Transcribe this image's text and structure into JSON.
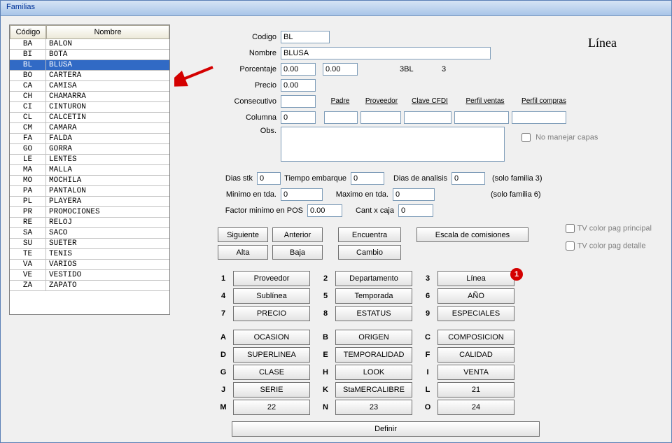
{
  "window": {
    "title": "Familias"
  },
  "table": {
    "headers": {
      "codigo": "Código",
      "nombre": "Nombre"
    },
    "rows": [
      {
        "codigo": "BA",
        "nombre": "BALON",
        "selected": false
      },
      {
        "codigo": "BI",
        "nombre": "BOTA",
        "selected": false
      },
      {
        "codigo": "BL",
        "nombre": "BLUSA",
        "selected": true
      },
      {
        "codigo": "BO",
        "nombre": "CARTERA",
        "selected": false
      },
      {
        "codigo": "CA",
        "nombre": "CAMISA",
        "selected": false
      },
      {
        "codigo": "CH",
        "nombre": "CHAMARRA",
        "selected": false
      },
      {
        "codigo": "CI",
        "nombre": "CINTURON",
        "selected": false
      },
      {
        "codigo": "CL",
        "nombre": "CALCETIN",
        "selected": false
      },
      {
        "codigo": "CM",
        "nombre": "CAMARA",
        "selected": false
      },
      {
        "codigo": "FA",
        "nombre": "FALDA",
        "selected": false
      },
      {
        "codigo": "GO",
        "nombre": "GORRA",
        "selected": false
      },
      {
        "codigo": "LE",
        "nombre": "LENTES",
        "selected": false
      },
      {
        "codigo": "MA",
        "nombre": "MALLA",
        "selected": false
      },
      {
        "codigo": "MO",
        "nombre": "MOCHILA",
        "selected": false
      },
      {
        "codigo": "PA",
        "nombre": "PANTALON",
        "selected": false
      },
      {
        "codigo": "PL",
        "nombre": "PLAYERA",
        "selected": false
      },
      {
        "codigo": "PR",
        "nombre": "PROMOCIONES",
        "selected": false
      },
      {
        "codigo": "RE",
        "nombre": "RELOJ",
        "selected": false
      },
      {
        "codigo": "SA",
        "nombre": "SACO",
        "selected": false
      },
      {
        "codigo": "SU",
        "nombre": "SUETER",
        "selected": false
      },
      {
        "codigo": "TE",
        "nombre": "TENIS",
        "selected": false
      },
      {
        "codigo": "VA",
        "nombre": "VARIOS",
        "selected": false
      },
      {
        "codigo": "VE",
        "nombre": "VESTIDO",
        "selected": false
      },
      {
        "codigo": "ZA",
        "nombre": "ZAPATO",
        "selected": false
      }
    ]
  },
  "bigTitle": "Línea",
  "form": {
    "labels": {
      "codigo": "Codigo",
      "nombre": "Nombre",
      "porcentaje": "Porcentaje",
      "precio": "Precio",
      "consecutivo": "Consecutivo",
      "columna": "Columna",
      "obs": "Obs."
    },
    "values": {
      "codigo": "BL",
      "nombre": "BLUSA",
      "porcentaje1": "0.00",
      "porcentaje2": "0.00",
      "porc_extra1": "3BL",
      "porc_extra2": "3",
      "precio": "0.00",
      "consecutivo": "",
      "columna": "0",
      "padre": "",
      "proveedor": "",
      "clave_cfdi": "",
      "perfil_ventas": "",
      "perfil_compras": "",
      "obs": ""
    },
    "subheaders": {
      "padre": "Padre",
      "proveedor": "Proveedor",
      "clave_cfdi": "Clave CFDI",
      "perfil_ventas": "Perfil ventas",
      "perfil_compras": "Perfil compras"
    },
    "no_capas": "No manejar capas"
  },
  "mid": {
    "dias_stk_lbl": "Dias stk",
    "dias_stk": "0",
    "tiempo_emb_lbl": "Tiempo embarque",
    "tiempo_emb": "0",
    "dias_analisis_lbl": "Dias de analisis",
    "dias_analisis": "0",
    "solo3": "(solo familia 3)",
    "min_tda_lbl": "Minimo en tda.",
    "min_tda": "0",
    "max_tda_lbl": "Maximo en tda.",
    "max_tda": "0",
    "solo6": "(solo familia 6)",
    "factor_lbl": "Factor minimo en POS",
    "factor": "0.00",
    "cantxcaja_lbl": "Cant x caja",
    "cantxcaja": "0",
    "tv_principal": "TV color pag principal",
    "tv_detalle": "TV color pag detalle"
  },
  "buttons": {
    "siguiente": "Siguiente",
    "anterior": "Anterior",
    "alta": "Alta",
    "baja": "Baja",
    "encuentra": "Encuentra",
    "cambio": "Cambio",
    "escala": "Escala de comisiones",
    "definir": "Definir"
  },
  "categories": [
    [
      {
        "k": "1",
        "v": "Proveedor"
      },
      {
        "k": "2",
        "v": "Departamento"
      },
      {
        "k": "3",
        "v": "Línea",
        "badge": "1"
      }
    ],
    [
      {
        "k": "4",
        "v": "Sublínea"
      },
      {
        "k": "5",
        "v": "Temporada"
      },
      {
        "k": "6",
        "v": "AÑO"
      }
    ],
    [
      {
        "k": "7",
        "v": "PRECIO"
      },
      {
        "k": "8",
        "v": "ESTATUS"
      },
      {
        "k": "9",
        "v": "ESPECIALES"
      }
    ],
    [
      {
        "k": "A",
        "v": "OCASION"
      },
      {
        "k": "B",
        "v": "ORIGEN"
      },
      {
        "k": "C",
        "v": "COMPOSICION"
      }
    ],
    [
      {
        "k": "D",
        "v": "SUPERLINEA"
      },
      {
        "k": "E",
        "v": "TEMPORALIDAD"
      },
      {
        "k": "F",
        "v": "CALIDAD"
      }
    ],
    [
      {
        "k": "G",
        "v": "CLASE"
      },
      {
        "k": "H",
        "v": "LOOK"
      },
      {
        "k": "I",
        "v": "VENTA"
      }
    ],
    [
      {
        "k": "J",
        "v": "SERIE"
      },
      {
        "k": "K",
        "v": "StaMERCALIBRE"
      },
      {
        "k": "L",
        "v": "21"
      }
    ],
    [
      {
        "k": "M",
        "v": "22"
      },
      {
        "k": "N",
        "v": "23"
      },
      {
        "k": "O",
        "v": "24"
      }
    ]
  ],
  "annotation": {
    "arrow_color": "#d40000",
    "badge_bg": "#d40000",
    "badge_fg": "#ffffff"
  }
}
